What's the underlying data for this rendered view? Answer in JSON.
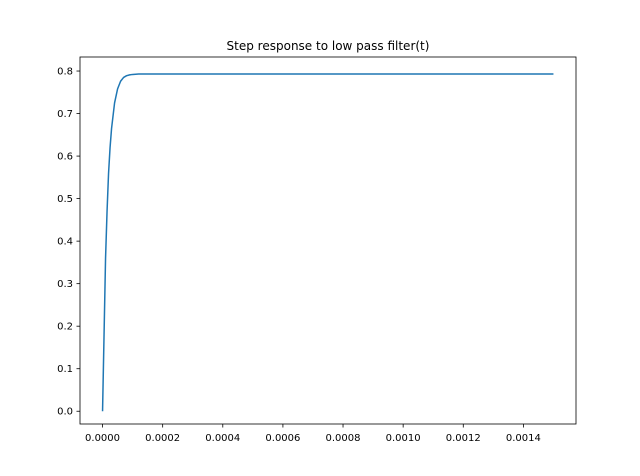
{
  "chart_data": {
    "type": "line",
    "title": "Step response to low pass filter(t)",
    "xlabel": "",
    "ylabel": "",
    "xlim": [
      -7.5e-05,
      0.001575
    ],
    "ylim": [
      -0.03,
      0.833
    ],
    "xticks": [
      0.0,
      0.0002,
      0.0004,
      0.0006,
      0.0008,
      0.001,
      0.0012,
      0.0014
    ],
    "xtick_labels": [
      "0.0000",
      "0.0002",
      "0.0004",
      "0.0006",
      "0.0008",
      "0.0010",
      "0.0012",
      "0.0014"
    ],
    "yticks": [
      0.0,
      0.1,
      0.2,
      0.3,
      0.4,
      0.5,
      0.6,
      0.7,
      0.8
    ],
    "ytick_labels": [
      "0.0",
      "0.1",
      "0.2",
      "0.3",
      "0.4",
      "0.5",
      "0.6",
      "0.7",
      "0.8"
    ],
    "grid": false,
    "series": [
      {
        "color": "#1f77b4",
        "x": [
          0,
          5e-06,
          1e-05,
          1.5e-05,
          2e-05,
          2.5e-05,
          3e-05,
          4e-05,
          5e-05,
          6e-05,
          7e-05,
          8e-05,
          9e-05,
          0.0001,
          0.00012,
          0.00015,
          0.0002,
          0.0003,
          0.0005,
          0.0008,
          0.0011,
          0.0015
        ],
        "y": [
          0.0,
          0.18,
          0.36,
          0.47,
          0.56,
          0.62,
          0.665,
          0.725,
          0.758,
          0.776,
          0.785,
          0.789,
          0.791,
          0.792,
          0.793,
          0.793,
          0.793,
          0.793,
          0.793,
          0.793,
          0.793,
          0.793
        ]
      }
    ]
  }
}
